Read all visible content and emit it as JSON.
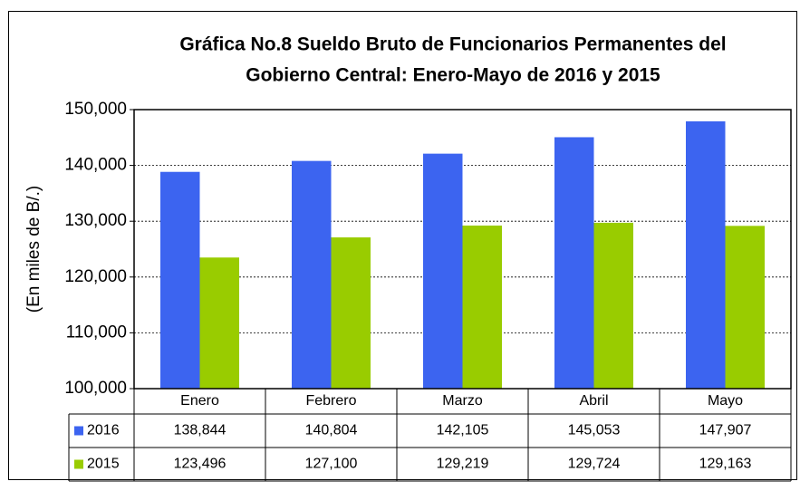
{
  "chart_data": {
    "type": "bar",
    "title": [
      "Gráfica No.8 Sueldo Bruto de Funcionarios Permanentes del",
      "Gobierno Central: Enero-Mayo de 2016 y 2015"
    ],
    "y_label": "(En miles de B/.)",
    "categories": [
      "Enero",
      "Febrero",
      "Marzo",
      "Abril",
      "Mayo"
    ],
    "series": [
      {
        "name": "2016",
        "color": "#3c64f0",
        "values": [
          138844,
          140804,
          142105,
          145053,
          147907
        ],
        "value_labels": [
          "138,844",
          "140,804",
          "142,105",
          "145,053",
          "147,907"
        ]
      },
      {
        "name": "2015",
        "color": "#99cc00",
        "values": [
          123496,
          127100,
          129219,
          129724,
          129163
        ],
        "value_labels": [
          "123,496",
          "127,100",
          "129,219",
          "129,724",
          "129,163"
        ]
      }
    ],
    "ylim": [
      100000,
      150000
    ],
    "yticks": [
      {
        "value": 100000,
        "label": "100,000"
      },
      {
        "value": 110000,
        "label": "110,000"
      },
      {
        "value": 120000,
        "label": "120,000"
      },
      {
        "value": 130000,
        "label": "130,000"
      },
      {
        "value": 140000,
        "label": "140,000"
      },
      {
        "value": 150000,
        "label": "150,000"
      }
    ],
    "grid": true
  }
}
